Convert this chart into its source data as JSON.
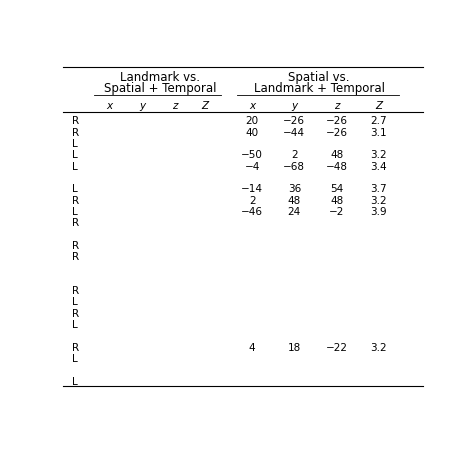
{
  "header1_line1": "Landmark vs.",
  "header1_line2": "Spatial + Temporal",
  "header2_line1": "Spatial vs.",
  "header2_line2": "Landmark + Temporal",
  "rows": [
    {
      "side": "R",
      "sp_x": "20",
      "sp_y": "−26",
      "sp_z": "−26",
      "sp_Z": "2.7"
    },
    {
      "side": "R",
      "sp_x": "40",
      "sp_y": "−44",
      "sp_z": "−26",
      "sp_Z": "3.1"
    },
    {
      "side": "L",
      "sp_x": "",
      "sp_y": "",
      "sp_z": "",
      "sp_Z": ""
    },
    {
      "side": "L",
      "sp_x": "−50",
      "sp_y": "2",
      "sp_z": "48",
      "sp_Z": "3.2"
    },
    {
      "side": "L",
      "sp_x": "−4",
      "sp_y": "−68",
      "sp_z": "−48",
      "sp_Z": "3.4"
    },
    {
      "side": "",
      "sp_x": "",
      "sp_y": "",
      "sp_z": "",
      "sp_Z": ""
    },
    {
      "side": "L",
      "sp_x": "−14",
      "sp_y": "36",
      "sp_z": "54",
      "sp_Z": "3.7"
    },
    {
      "side": "R",
      "sp_x": "2",
      "sp_y": "48",
      "sp_z": "48",
      "sp_Z": "3.2"
    },
    {
      "side": "L",
      "sp_x": "−46",
      "sp_y": "24",
      "sp_z": "−2",
      "sp_Z": "3.9"
    },
    {
      "side": "R",
      "sp_x": "",
      "sp_y": "",
      "sp_z": "",
      "sp_Z": ""
    },
    {
      "side": "",
      "sp_x": "",
      "sp_y": "",
      "sp_z": "",
      "sp_Z": ""
    },
    {
      "side": "R",
      "sp_x": "",
      "sp_y": "",
      "sp_z": "",
      "sp_Z": ""
    },
    {
      "side": "R",
      "sp_x": "",
      "sp_y": "",
      "sp_z": "",
      "sp_Z": ""
    },
    {
      "side": "",
      "sp_x": "",
      "sp_y": "",
      "sp_z": "",
      "sp_Z": ""
    },
    {
      "side": "",
      "sp_x": "",
      "sp_y": "",
      "sp_z": "",
      "sp_Z": ""
    },
    {
      "side": "R",
      "sp_x": "",
      "sp_y": "",
      "sp_z": "",
      "sp_Z": ""
    },
    {
      "side": "L",
      "sp_x": "",
      "sp_y": "",
      "sp_z": "",
      "sp_Z": ""
    },
    {
      "side": "R",
      "sp_x": "",
      "sp_y": "",
      "sp_z": "",
      "sp_Z": ""
    },
    {
      "side": "L",
      "sp_x": "",
      "sp_y": "",
      "sp_z": "",
      "sp_Z": ""
    },
    {
      "side": "",
      "sp_x": "",
      "sp_y": "",
      "sp_z": "",
      "sp_Z": ""
    },
    {
      "side": "R",
      "sp_x": "4",
      "sp_y": "18",
      "sp_z": "−22",
      "sp_Z": "3.2"
    },
    {
      "side": "L",
      "sp_x": "",
      "sp_y": "",
      "sp_z": "",
      "sp_Z": ""
    },
    {
      "side": "",
      "sp_x": "",
      "sp_y": "",
      "sp_z": "",
      "sp_Z": ""
    },
    {
      "side": "L",
      "sp_x": "",
      "sp_y": "",
      "sp_z": "",
      "sp_Z": ""
    }
  ],
  "bg_color": "#ffffff",
  "text_color": "#000000",
  "font_size": 7.5,
  "header_font_size": 8.5
}
